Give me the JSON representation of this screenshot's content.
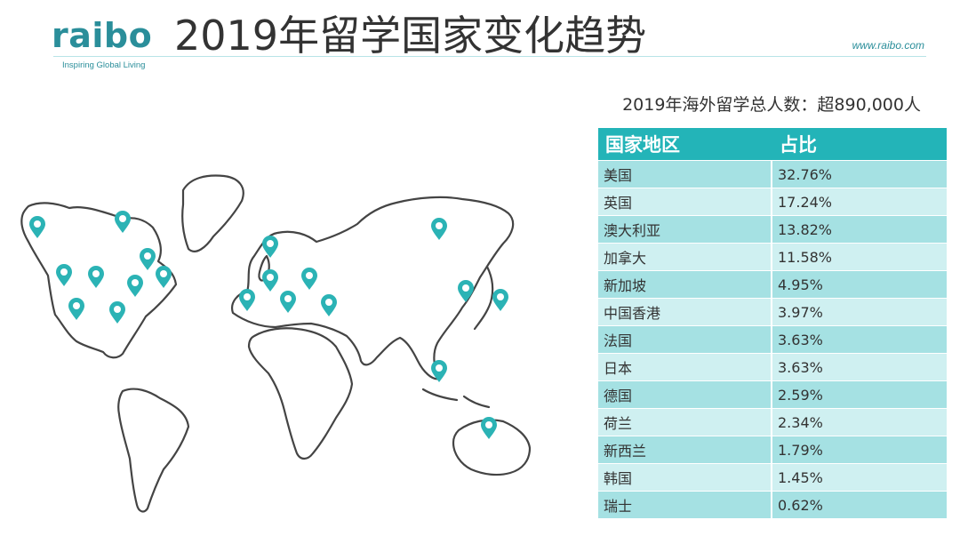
{
  "brand": {
    "logo_text": "raibo",
    "tagline": "Inspiring Global Living",
    "website": "www.raibo.com",
    "color": "#2a8e9a"
  },
  "title": "2019年留学国家变化趋势",
  "total_text": "2019年海外留学总人数：超890,000人",
  "table": {
    "headers": [
      "国家地区",
      "占比"
    ],
    "rows": [
      {
        "country": "美国",
        "share": "32.76%"
      },
      {
        "country": "英国",
        "share": "17.24%"
      },
      {
        "country": "澳大利亚",
        "share": "13.82%"
      },
      {
        "country": "加拿大",
        "share": "11.58%"
      },
      {
        "country": "新加坡",
        "share": "4.95%"
      },
      {
        "country": "中国香港",
        "share": "3.97%"
      },
      {
        "country": "法国",
        "share": "3.63%"
      },
      {
        "country": "日本",
        "share": "3.63%"
      },
      {
        "country": "德国",
        "share": "2.59%"
      },
      {
        "country": "荷兰",
        "share": "2.34%"
      },
      {
        "country": "新西兰",
        "share": "1.79%"
      },
      {
        "country": "韩国",
        "share": "1.45%"
      },
      {
        "country": "瑞士",
        "share": "0.62%"
      }
    ],
    "header_color": "#23b4b8",
    "row_colors": [
      "#a5e1e3",
      "#cff0f1"
    ]
  },
  "map": {
    "pin_icon": "map-pin-icon",
    "pin_color": "#2bb3b5",
    "outline_color": "#444444"
  }
}
